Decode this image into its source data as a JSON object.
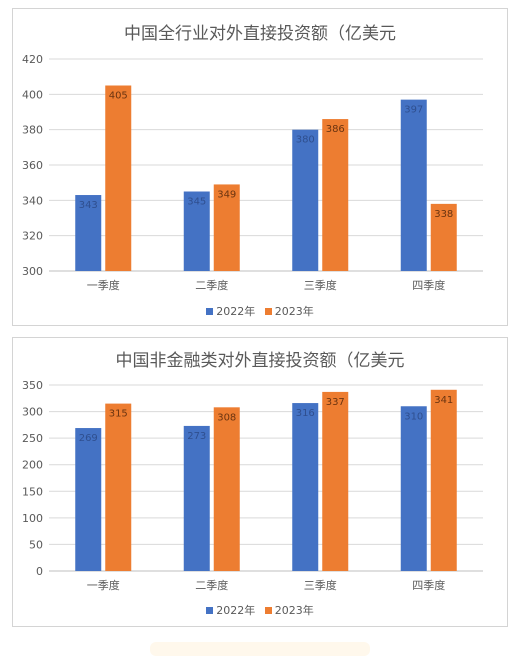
{
  "charts": [
    {
      "type": "bar",
      "title": "中国全行业对外直接投资额（亿美元",
      "categories": [
        "一季度",
        "二季度",
        "三季度",
        "四季度"
      ],
      "series": [
        {
          "name": "2022年",
          "values": [
            343,
            345,
            380,
            397
          ]
        },
        {
          "name": "2023年",
          "values": [
            405,
            349,
            386,
            338
          ]
        }
      ],
      "ylim": [
        300,
        420
      ],
      "yticks": [
        "300",
        "320",
        "340",
        "360",
        "380",
        "400",
        "420"
      ],
      "grid": true,
      "legend": "bottom-center"
    },
    {
      "type": "bar",
      "title": "中国非金融类对外直接投资额（亿美元",
      "categories": [
        "一季度",
        "二季度",
        "三季度",
        "四季度"
      ],
      "series": [
        {
          "name": "2022年",
          "values": [
            269,
            273,
            316,
            310
          ]
        },
        {
          "name": "2023年",
          "values": [
            315,
            308,
            337,
            341
          ]
        }
      ],
      "ylim": [
        0,
        350
      ],
      "yticks": [
        "0",
        "50",
        "100",
        "150",
        "200",
        "250",
        "300",
        "350"
      ],
      "grid": true,
      "legend": "bottom-center"
    }
  ],
  "colors": {
    "series_2022": "#4472c4",
    "series_2023": "#ed7d31"
  }
}
